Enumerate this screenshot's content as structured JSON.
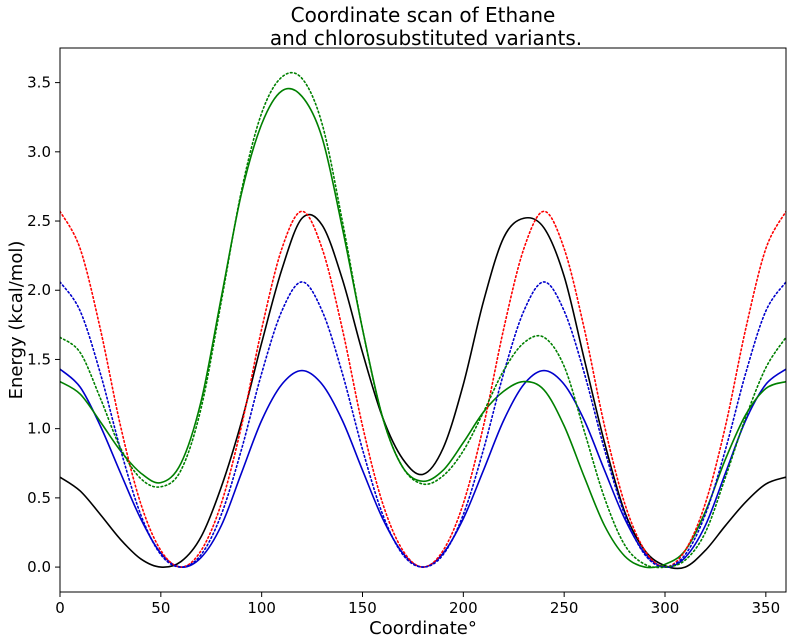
{
  "chart_data": {
    "type": "line",
    "title_lines": [
      "Coordinate scan of Ethane",
      "and chlorosubstituted variants."
    ],
    "xlabel": "Coordinate°",
    "ylabel": "Energy (kcal/mol)",
    "xlim": [
      0,
      360
    ],
    "ylim": [
      -0.18,
      3.75
    ],
    "xticks": [
      0,
      50,
      100,
      150,
      200,
      250,
      300,
      350
    ],
    "yticks": [
      0.0,
      0.5,
      1.0,
      1.5,
      2.0,
      2.5,
      3.0,
      3.5
    ],
    "ytick_labels": [
      "0.0",
      "0.5",
      "1.0",
      "1.5",
      "2.0",
      "2.5",
      "3.0",
      "3.5"
    ],
    "grid": false,
    "legend": "none",
    "series": [
      {
        "color": "#000000",
        "linestyle": "solid",
        "x": [
          0,
          10,
          20,
          30,
          40,
          50,
          60,
          70,
          80,
          90,
          100,
          110,
          120,
          130,
          140,
          150,
          160,
          170,
          180,
          190,
          200,
          210,
          220,
          230,
          240,
          250,
          260,
          270,
          280,
          290,
          300,
          310,
          320,
          330,
          340,
          350,
          360
        ],
        "y": [
          0.65,
          0.55,
          0.38,
          0.2,
          0.06,
          0.0,
          0.04,
          0.22,
          0.58,
          1.05,
          1.62,
          2.15,
          2.52,
          2.47,
          2.08,
          1.55,
          1.08,
          0.78,
          0.67,
          0.86,
          1.32,
          1.92,
          2.38,
          2.52,
          2.45,
          2.1,
          1.5,
          0.9,
          0.4,
          0.12,
          0.01,
          0.0,
          0.12,
          0.3,
          0.47,
          0.6,
          0.65
        ]
      },
      {
        "color": "#0000cc",
        "linestyle": "solid",
        "x": [
          0,
          10,
          20,
          30,
          40,
          50,
          60,
          70,
          80,
          90,
          100,
          110,
          120,
          130,
          140,
          150,
          160,
          170,
          180,
          190,
          200,
          210,
          220,
          230,
          240,
          250,
          260,
          270,
          280,
          290,
          300,
          310,
          320,
          330,
          340,
          350,
          360
        ],
        "y": [
          1.43,
          1.3,
          1.02,
          0.68,
          0.35,
          0.1,
          0.0,
          0.07,
          0.3,
          0.68,
          1.06,
          1.32,
          1.42,
          1.32,
          1.06,
          0.7,
          0.35,
          0.1,
          0.0,
          0.1,
          0.35,
          0.7,
          1.06,
          1.32,
          1.42,
          1.32,
          1.06,
          0.7,
          0.35,
          0.1,
          0.0,
          0.07,
          0.3,
          0.68,
          1.06,
          1.32,
          1.43
        ]
      },
      {
        "color": "#008000",
        "linestyle": "solid",
        "x": [
          0,
          10,
          20,
          30,
          40,
          50,
          60,
          70,
          80,
          90,
          100,
          110,
          120,
          130,
          140,
          150,
          160,
          170,
          180,
          190,
          200,
          210,
          220,
          230,
          240,
          250,
          260,
          270,
          280,
          290,
          300,
          310,
          320,
          330,
          340,
          350,
          360
        ],
        "y": [
          1.34,
          1.25,
          1.05,
          0.84,
          0.68,
          0.61,
          0.75,
          1.2,
          1.95,
          2.7,
          3.2,
          3.44,
          3.4,
          3.1,
          2.45,
          1.72,
          1.08,
          0.72,
          0.62,
          0.7,
          0.9,
          1.12,
          1.27,
          1.34,
          1.28,
          1.02,
          0.65,
          0.3,
          0.08,
          0.0,
          0.02,
          0.12,
          0.4,
          0.78,
          1.1,
          1.29,
          1.34
        ]
      },
      {
        "color": "#ff0000",
        "linestyle": "dotted",
        "x": [
          0,
          10,
          20,
          30,
          40,
          50,
          60,
          70,
          80,
          90,
          100,
          110,
          120,
          130,
          140,
          150,
          160,
          170,
          180,
          190,
          200,
          210,
          220,
          230,
          240,
          250,
          260,
          270,
          280,
          290,
          300,
          310,
          320,
          330,
          340,
          350,
          360
        ],
        "y": [
          2.57,
          2.3,
          1.72,
          1.02,
          0.46,
          0.12,
          0.0,
          0.12,
          0.46,
          1.02,
          1.72,
          2.3,
          2.57,
          2.3,
          1.72,
          1.02,
          0.46,
          0.12,
          0.0,
          0.12,
          0.46,
          1.02,
          1.72,
          2.3,
          2.57,
          2.3,
          1.72,
          1.02,
          0.46,
          0.12,
          0.0,
          0.12,
          0.46,
          1.02,
          1.72,
          2.3,
          2.57
        ]
      },
      {
        "color": "#0000cc",
        "linestyle": "dotted",
        "x": [
          0,
          10,
          20,
          30,
          40,
          50,
          60,
          70,
          80,
          90,
          100,
          110,
          120,
          130,
          140,
          150,
          160,
          170,
          180,
          190,
          200,
          210,
          220,
          230,
          240,
          250,
          260,
          270,
          280,
          290,
          300,
          310,
          320,
          330,
          340,
          350,
          360
        ],
        "y": [
          2.06,
          1.85,
          1.4,
          0.85,
          0.38,
          0.09,
          0.0,
          0.09,
          0.38,
          0.85,
          1.4,
          1.85,
          2.06,
          1.85,
          1.4,
          0.85,
          0.38,
          0.09,
          0.0,
          0.09,
          0.38,
          0.85,
          1.4,
          1.85,
          2.06,
          1.85,
          1.4,
          0.85,
          0.38,
          0.09,
          0.0,
          0.09,
          0.38,
          0.85,
          1.4,
          1.85,
          2.06
        ]
      },
      {
        "color": "#008000",
        "linestyle": "dotted",
        "x": [
          0,
          10,
          20,
          30,
          40,
          50,
          60,
          70,
          80,
          90,
          100,
          110,
          120,
          130,
          140,
          150,
          160,
          170,
          180,
          190,
          200,
          210,
          220,
          230,
          240,
          250,
          260,
          270,
          280,
          290,
          300,
          310,
          320,
          330,
          340,
          350,
          360
        ],
        "y": [
          1.66,
          1.55,
          1.22,
          0.86,
          0.64,
          0.58,
          0.7,
          1.15,
          1.92,
          2.72,
          3.28,
          3.54,
          3.53,
          3.2,
          2.5,
          1.72,
          1.08,
          0.72,
          0.6,
          0.66,
          0.84,
          1.12,
          1.42,
          1.62,
          1.66,
          1.45,
          0.98,
          0.5,
          0.16,
          0.02,
          0.0,
          0.05,
          0.25,
          0.65,
          1.08,
          1.44,
          1.66
        ]
      }
    ]
  }
}
